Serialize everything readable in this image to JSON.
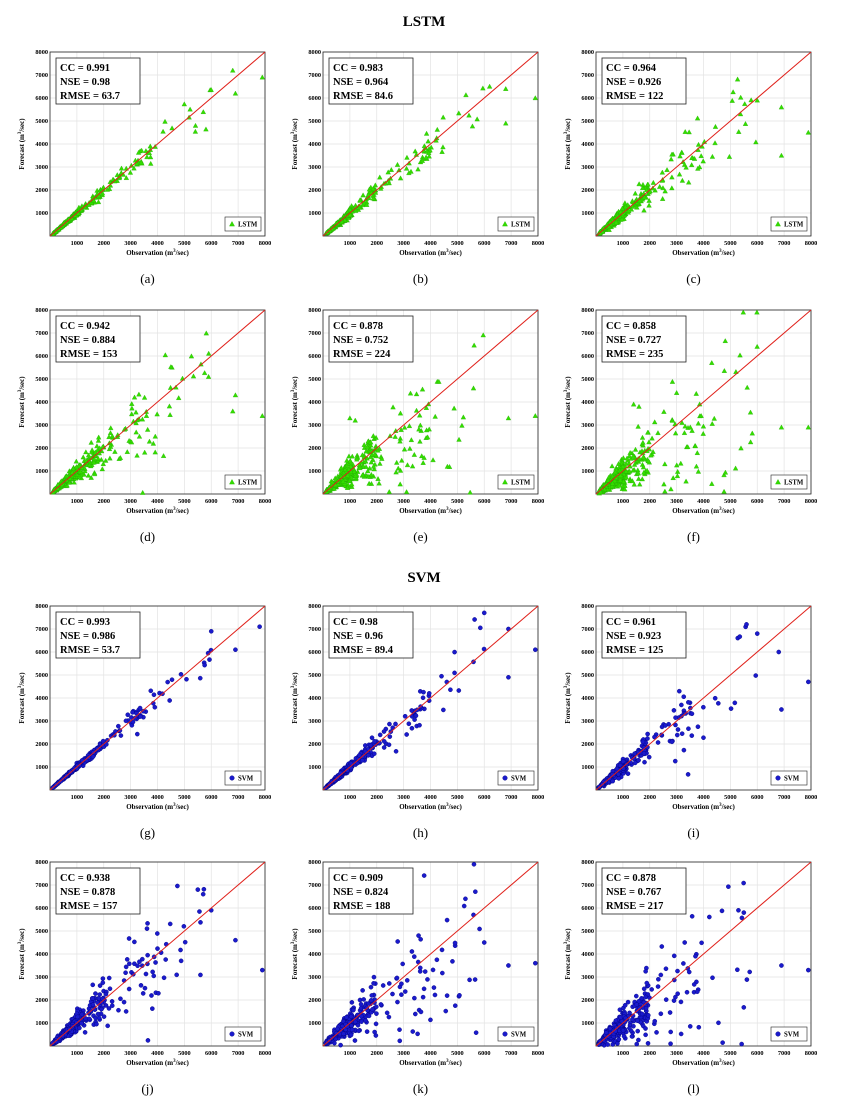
{
  "figure": {
    "sections": [
      {
        "title": "LSTM"
      },
      {
        "title": "SVM"
      }
    ]
  },
  "style": {
    "lstm_marker_color": "#33dd00",
    "lstm_marker_stroke": "#22aa00",
    "svm_marker_color": "#1a1acc",
    "svm_marker_stroke": "#000080",
    "identity_line_color": "#e0201a",
    "grid_color": "#e3e3e3"
  },
  "chart_data": [
    {
      "panel_label": "(a)",
      "type": "scatter",
      "series": [
        {
          "name": "LSTM",
          "marker": "triangle"
        }
      ],
      "metrics": [
        "CC = 0.991",
        "NSE = 0.98",
        "RMSE = 63.7"
      ],
      "xlabel": "Observation (m",
      "ylabel": "Forecast (m",
      "unit_suffix": "/sec)",
      "unit_exponent": "3",
      "xlim": [
        0,
        8000
      ],
      "ylim": [
        0,
        8000
      ],
      "xticks": [
        "1000",
        "2000",
        "3000",
        "4000",
        "5000",
        "6000",
        "7000",
        "8000"
      ],
      "yticks": [
        "1000",
        "2000",
        "3000",
        "4000",
        "5000",
        "6000",
        "7000",
        "8000"
      ],
      "grid": true,
      "legend": "bottom-right",
      "spread": 0.07,
      "bias": 0.0,
      "n": 320,
      "outliers": [
        [
          6800,
          7200
        ],
        [
          7900,
          6900
        ],
        [
          6900,
          6200
        ]
      ]
    },
    {
      "panel_label": "(b)",
      "type": "scatter",
      "series": [
        {
          "name": "LSTM",
          "marker": "triangle"
        }
      ],
      "metrics": [
        "CC = 0.983",
        "NSE = 0.964",
        "RMSE = 84.6"
      ],
      "xlabel": "Observation (m",
      "ylabel": "Forecast (m",
      "unit_suffix": "/sec)",
      "unit_exponent": "3",
      "xlim": [
        0,
        8000
      ],
      "ylim": [
        0,
        8000
      ],
      "xticks": [
        "1000",
        "2000",
        "3000",
        "4000",
        "5000",
        "6000",
        "7000",
        "8000"
      ],
      "yticks": [
        "1000",
        "2000",
        "3000",
        "4000",
        "5000",
        "6000",
        "7000",
        "8000"
      ],
      "grid": true,
      "legend": "bottom-right",
      "spread": 0.12,
      "bias": -0.03,
      "n": 320,
      "outliers": [
        [
          6800,
          6400
        ],
        [
          7900,
          6000
        ],
        [
          6800,
          4900
        ],
        [
          6200,
          6500
        ]
      ]
    },
    {
      "panel_label": "(c)",
      "type": "scatter",
      "series": [
        {
          "name": "LSTM",
          "marker": "triangle"
        }
      ],
      "metrics": [
        "CC = 0.964",
        "NSE = 0.926",
        "RMSE = 122"
      ],
      "xlabel": "Observation (m",
      "ylabel": "Forecast (m",
      "unit_suffix": "/sec)",
      "unit_exponent": "3",
      "xlim": [
        0,
        8000
      ],
      "ylim": [
        0,
        8000
      ],
      "xticks": [
        "1000",
        "2000",
        "3000",
        "4000",
        "5000",
        "6000",
        "7000",
        "8000"
      ],
      "yticks": [
        "1000",
        "2000",
        "3000",
        "4000",
        "5000",
        "6000",
        "7000",
        "8000"
      ],
      "grid": true,
      "legend": "bottom-right",
      "spread": 0.2,
      "bias": -0.05,
      "n": 340,
      "outliers": [
        [
          6900,
          5600
        ],
        [
          7900,
          4500
        ],
        [
          6900,
          3500
        ],
        [
          6000,
          5900
        ]
      ]
    },
    {
      "panel_label": "(d)",
      "type": "scatter",
      "series": [
        {
          "name": "LSTM",
          "marker": "triangle"
        }
      ],
      "metrics": [
        "CC = 0.942",
        "NSE = 0.884",
        "RMSE = 153"
      ],
      "xlabel": "Observation (m",
      "ylabel": "Forecast (m",
      "unit_suffix": "/sec)",
      "unit_exponent": "3",
      "xlim": [
        0,
        8000
      ],
      "ylim": [
        0,
        8000
      ],
      "xticks": [
        "1000",
        "2000",
        "3000",
        "4000",
        "5000",
        "6000",
        "7000",
        "8000"
      ],
      "yticks": [
        "1000",
        "2000",
        "3000",
        "4000",
        "5000",
        "6000",
        "7000",
        "8000"
      ],
      "grid": true,
      "legend": "bottom-right",
      "spread": 0.26,
      "bias": -0.13,
      "n": 360,
      "outliers": [
        [
          6900,
          4300
        ],
        [
          7900,
          3400
        ],
        [
          6800,
          3600
        ],
        [
          5900,
          5100
        ]
      ]
    },
    {
      "panel_label": "(e)",
      "type": "scatter",
      "series": [
        {
          "name": "LSTM",
          "marker": "triangle"
        }
      ],
      "metrics": [
        "CC = 0.878",
        "NSE = 0.752",
        "RMSE = 224"
      ],
      "xlabel": "Observation (m",
      "ylabel": "Forecast (m",
      "unit_suffix": "/sec)",
      "unit_exponent": "3",
      "xlim": [
        0,
        8000
      ],
      "ylim": [
        0,
        8000
      ],
      "xticks": [
        "1000",
        "2000",
        "3000",
        "4000",
        "5000",
        "6000",
        "7000",
        "8000"
      ],
      "yticks": [
        "1000",
        "2000",
        "3000",
        "4000",
        "5000",
        "6000",
        "7000",
        "8000"
      ],
      "grid": true,
      "legend": "bottom-right",
      "spread": 0.4,
      "bias": -0.25,
      "n": 380,
      "outliers": [
        [
          6900,
          3300
        ],
        [
          7900,
          3400
        ],
        [
          5600,
          4600
        ],
        [
          1000,
          3300
        ],
        [
          1200,
          3200
        ]
      ]
    },
    {
      "panel_label": "(f)",
      "type": "scatter",
      "series": [
        {
          "name": "LSTM",
          "marker": "triangle"
        }
      ],
      "metrics": [
        "CC = 0.858",
        "NSE = 0.727",
        "RMSE = 235"
      ],
      "xlabel": "Observation (m",
      "ylabel": "Forecast (m",
      "unit_suffix": "/sec)",
      "unit_exponent": "3",
      "xlim": [
        0,
        8000
      ],
      "ylim": [
        0,
        8000
      ],
      "xticks": [
        "1000",
        "2000",
        "3000",
        "4000",
        "5000",
        "6000",
        "7000",
        "8000"
      ],
      "yticks": [
        "1000",
        "2000",
        "3000",
        "4000",
        "5000",
        "6000",
        "7000",
        "8000"
      ],
      "grid": true,
      "legend": "bottom-right",
      "spread": 0.44,
      "bias": -0.3,
      "n": 380,
      "outliers": [
        [
          6900,
          2900
        ],
        [
          7900,
          2900
        ],
        [
          1400,
          3900
        ],
        [
          3000,
          4400
        ],
        [
          1600,
          3800
        ]
      ]
    },
    {
      "panel_label": "(g)",
      "type": "scatter",
      "series": [
        {
          "name": "SVM",
          "marker": "circle"
        }
      ],
      "metrics": [
        "CC = 0.993",
        "NSE = 0.986",
        "RMSE = 53.7"
      ],
      "xlabel": "Observation (m",
      "ylabel": "Forecast (m",
      "unit_suffix": "/sec)",
      "unit_exponent": "3",
      "xlim": [
        0,
        8000
      ],
      "ylim": [
        0,
        8000
      ],
      "xticks": [
        "1000",
        "2000",
        "3000",
        "4000",
        "5000",
        "6000",
        "7000",
        "8000"
      ],
      "yticks": [
        "1000",
        "2000",
        "3000",
        "4000",
        "5000",
        "6000",
        "7000",
        "8000"
      ],
      "grid": true,
      "legend": "bottom-right",
      "spread": 0.06,
      "bias": 0.0,
      "n": 300,
      "outliers": [
        [
          6000,
          6900
        ],
        [
          6900,
          6100
        ],
        [
          7800,
          7100
        ]
      ]
    },
    {
      "panel_label": "(h)",
      "type": "scatter",
      "series": [
        {
          "name": "SVM",
          "marker": "circle"
        }
      ],
      "metrics": [
        "CC = 0.98",
        "NSE = 0.96",
        "RMSE = 89.4"
      ],
      "xlabel": "Observation (m",
      "ylabel": "Forecast (m",
      "unit_suffix": "/sec)",
      "unit_exponent": "3",
      "xlim": [
        0,
        8000
      ],
      "ylim": [
        0,
        8000
      ],
      "xticks": [
        "1000",
        "2000",
        "3000",
        "4000",
        "5000",
        "6000",
        "7000",
        "8000"
      ],
      "yticks": [
        "1000",
        "2000",
        "3000",
        "4000",
        "5000",
        "6000",
        "7000",
        "8000"
      ],
      "grid": true,
      "legend": "bottom-right",
      "spread": 0.13,
      "bias": 0.0,
      "n": 300,
      "outliers": [
        [
          6000,
          7700
        ],
        [
          6900,
          7000
        ],
        [
          7900,
          6100
        ],
        [
          6900,
          4900
        ]
      ]
    },
    {
      "panel_label": "(i)",
      "type": "scatter",
      "series": [
        {
          "name": "SVM",
          "marker": "circle"
        }
      ],
      "metrics": [
        "CC = 0.961",
        "NSE = 0.923",
        "RMSE = 125"
      ],
      "xlabel": "Observation (m",
      "ylabel": "Forecast (m",
      "unit_suffix": "/sec)",
      "unit_exponent": "3",
      "xlim": [
        0,
        8000
      ],
      "ylim": [
        0,
        8000
      ],
      "xticks": [
        "1000",
        "2000",
        "3000",
        "4000",
        "5000",
        "6000",
        "7000",
        "8000"
      ],
      "yticks": [
        "1000",
        "2000",
        "3000",
        "4000",
        "5000",
        "6000",
        "7000",
        "8000"
      ],
      "grid": true,
      "legend": "bottom-right",
      "spread": 0.22,
      "bias": -0.04,
      "n": 320,
      "outliers": [
        [
          5600,
          7200
        ],
        [
          6000,
          6800
        ],
        [
          6800,
          6000
        ],
        [
          7900,
          4700
        ],
        [
          6900,
          3500
        ]
      ]
    },
    {
      "panel_label": "(j)",
      "type": "scatter",
      "series": [
        {
          "name": "SVM",
          "marker": "circle"
        }
      ],
      "metrics": [
        "CC = 0.938",
        "NSE = 0.878",
        "RMSE = 157"
      ],
      "xlabel": "Observation (m",
      "ylabel": "Forecast (m",
      "unit_suffix": "/sec)",
      "unit_exponent": "3",
      "xlim": [
        0,
        8000
      ],
      "ylim": [
        0,
        8000
      ],
      "xticks": [
        "1000",
        "2000",
        "3000",
        "4000",
        "5000",
        "6000",
        "7000",
        "8000"
      ],
      "yticks": [
        "1000",
        "2000",
        "3000",
        "4000",
        "5000",
        "6000",
        "7000",
        "8000"
      ],
      "grid": true,
      "legend": "bottom-right",
      "spread": 0.3,
      "bias": -0.12,
      "n": 340,
      "outliers": [
        [
          5500,
          6800
        ],
        [
          5700,
          6600
        ],
        [
          6900,
          4600
        ],
        [
          7900,
          3300
        ],
        [
          6000,
          5900
        ]
      ]
    },
    {
      "panel_label": "(k)",
      "type": "scatter",
      "series": [
        {
          "name": "SVM",
          "marker": "circle"
        }
      ],
      "metrics": [
        "CC = 0.909",
        "NSE = 0.824",
        "RMSE = 188"
      ],
      "xlabel": "Observation (m",
      "ylabel": "Forecast (m",
      "unit_suffix": "/sec)",
      "unit_exponent": "3",
      "xlim": [
        0,
        8000
      ],
      "ylim": [
        0,
        8000
      ],
      "xticks": [
        "1000",
        "2000",
        "3000",
        "4000",
        "5000",
        "6000",
        "7000",
        "8000"
      ],
      "yticks": [
        "1000",
        "2000",
        "3000",
        "4000",
        "5000",
        "6000",
        "7000",
        "8000"
      ],
      "grid": true,
      "legend": "bottom-right",
      "spread": 0.38,
      "bias": -0.18,
      "n": 360,
      "outliers": [
        [
          5300,
          6400
        ],
        [
          5600,
          5700
        ],
        [
          6900,
          3500
        ],
        [
          7900,
          3600
        ],
        [
          6000,
          4500
        ]
      ]
    },
    {
      "panel_label": "(l)",
      "type": "scatter",
      "series": [
        {
          "name": "SVM",
          "marker": "circle"
        }
      ],
      "metrics": [
        "CC = 0.878",
        "NSE = 0.767",
        "RMSE = 217"
      ],
      "xlabel": "Observation (m",
      "ylabel": "Forecast (m",
      "unit_suffix": "/sec)",
      "unit_exponent": "3",
      "xlim": [
        0,
        8000
      ],
      "ylim": [
        0,
        8000
      ],
      "xticks": [
        "1000",
        "2000",
        "3000",
        "4000",
        "5000",
        "6000",
        "7000",
        "8000"
      ],
      "yticks": [
        "1000",
        "2000",
        "3000",
        "4000",
        "5000",
        "6000",
        "7000",
        "8000"
      ],
      "grid": true,
      "legend": "bottom-right",
      "spread": 0.44,
      "bias": -0.22,
      "n": 360,
      "outliers": [
        [
          5300,
          5900
        ],
        [
          5500,
          5800
        ],
        [
          6900,
          3500
        ],
        [
          7900,
          3300
        ],
        [
          3300,
          4500
        ]
      ]
    }
  ]
}
